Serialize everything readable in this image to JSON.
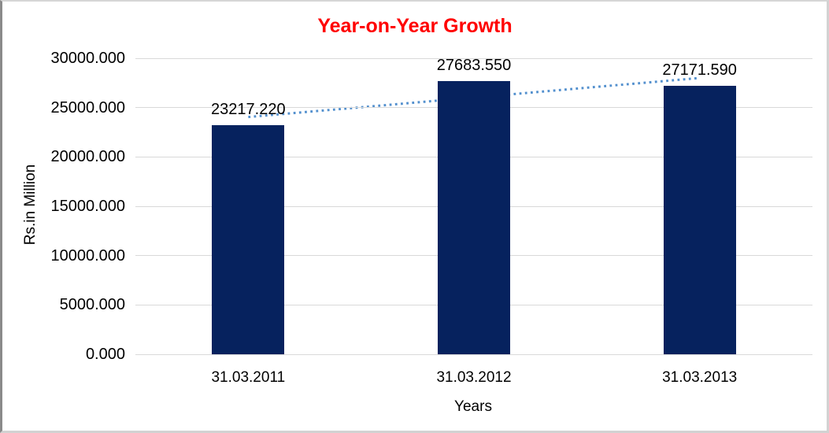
{
  "chart_data": {
    "type": "bar",
    "title": "Year-on-Year Growth",
    "xlabel": "Years",
    "ylabel": "Rs.in Million",
    "categories": [
      "31.03.2011",
      "31.03.2012",
      "31.03.2013"
    ],
    "values": [
      23217.22,
      27683.55,
      27171.59
    ],
    "value_labels": [
      "23217.220",
      "27683.550",
      "27171.590"
    ],
    "ylim": [
      0,
      30000
    ],
    "ytick_step": 5000,
    "ytick_labels": [
      "30000.000",
      "25000.000",
      "20000.000",
      "15000.000",
      "10000.000",
      "5000.000",
      "0.000"
    ],
    "grid": true,
    "legend": "none",
    "trendline": {
      "kind": "linear",
      "style": "dotted"
    },
    "colors": {
      "bar": "#06225e",
      "title": "#ff0000",
      "trendline": "#5390ce",
      "gridline": "#d9d9d9",
      "text": "#000000"
    }
  }
}
